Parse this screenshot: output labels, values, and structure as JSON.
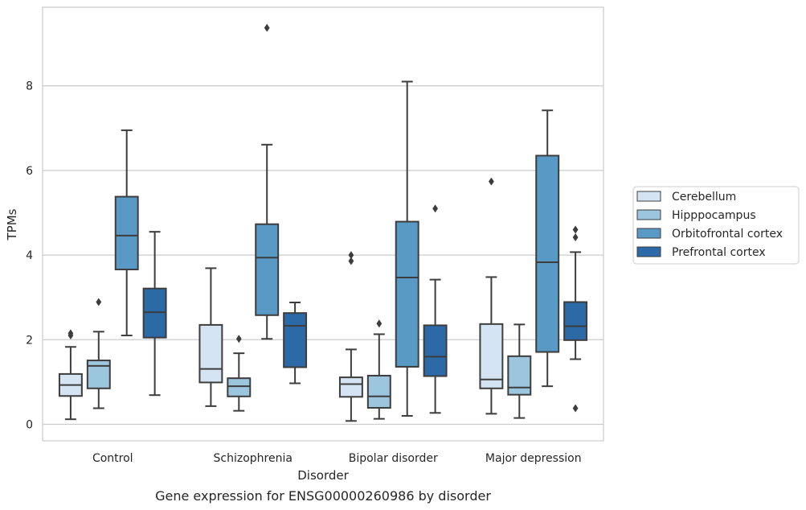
{
  "chart_data": {
    "type": "boxplot",
    "caption": "Gene expression for ENSG00000260986 by disorder",
    "xlabel": "Disorder",
    "ylabel": "TPMs",
    "ylim": [
      -0.4,
      9.9
    ],
    "yticks": [
      0,
      2,
      4,
      6,
      8
    ],
    "grid": "horizontal",
    "legend_position": "right, outside plot",
    "categories": [
      "Control",
      "Schizophrenia",
      "Bipolar disorder",
      "Major depression"
    ],
    "series": [
      {
        "name": "Cerebellum",
        "color": "#d4e4f2",
        "boxes": [
          {
            "whislo": 0.12,
            "q1": 0.67,
            "med": 0.93,
            "q3": 1.19,
            "whishi": 1.83,
            "fliers": [
              2.1,
              2.15
            ]
          },
          {
            "whislo": 0.43,
            "q1": 0.99,
            "med": 1.31,
            "q3": 2.35,
            "whishi": 3.69,
            "fliers": []
          },
          {
            "whislo": 0.08,
            "q1": 0.65,
            "med": 0.95,
            "q3": 1.11,
            "whishi": 1.77,
            "fliers": [
              3.86,
              4.0
            ]
          },
          {
            "whislo": 0.25,
            "q1": 0.85,
            "med": 1.06,
            "q3": 2.37,
            "whishi": 3.48,
            "fliers": [
              5.74
            ]
          }
        ]
      },
      {
        "name": "Hipppocampus",
        "color": "#9cc5de",
        "boxes": [
          {
            "whislo": 0.38,
            "q1": 0.85,
            "med": 1.38,
            "q3": 1.51,
            "whishi": 2.19,
            "fliers": [
              2.89
            ]
          },
          {
            "whislo": 0.32,
            "q1": 0.66,
            "med": 0.9,
            "q3": 1.09,
            "whishi": 1.68,
            "fliers": [
              2.02
            ]
          },
          {
            "whislo": 0.13,
            "q1": 0.39,
            "med": 0.66,
            "q3": 1.15,
            "whishi": 2.13,
            "fliers": [
              2.38
            ]
          },
          {
            "whislo": 0.15,
            "q1": 0.7,
            "med": 0.87,
            "q3": 1.61,
            "whishi": 2.36,
            "fliers": []
          }
        ]
      },
      {
        "name": "Orbitofrontal cortex",
        "color": "#5899c6",
        "boxes": [
          {
            "whislo": 2.1,
            "q1": 3.66,
            "med": 4.46,
            "q3": 5.38,
            "whishi": 6.95,
            "fliers": []
          },
          {
            "whislo": 2.02,
            "q1": 2.58,
            "med": 3.94,
            "q3": 4.73,
            "whishi": 6.61,
            "fliers": [
              9.37
            ]
          },
          {
            "whislo": 0.2,
            "q1": 1.36,
            "med": 3.47,
            "q3": 4.79,
            "whishi": 8.1,
            "fliers": []
          },
          {
            "whislo": 0.9,
            "q1": 1.71,
            "med": 3.83,
            "q3": 6.35,
            "whishi": 7.42,
            "fliers": []
          }
        ]
      },
      {
        "name": "Prefrontal cortex",
        "color": "#2b69a7",
        "boxes": [
          {
            "whislo": 0.69,
            "q1": 2.05,
            "med": 2.65,
            "q3": 3.21,
            "whishi": 4.55,
            "fliers": []
          },
          {
            "whislo": 0.97,
            "q1": 1.35,
            "med": 2.33,
            "q3": 2.63,
            "whishi": 2.88,
            "fliers": []
          },
          {
            "whislo": 0.27,
            "q1": 1.14,
            "med": 1.6,
            "q3": 2.34,
            "whishi": 3.42,
            "fliers": [
              5.1
            ]
          },
          {
            "whislo": 1.54,
            "q1": 1.99,
            "med": 2.32,
            "q3": 2.89,
            "whishi": 4.07,
            "fliers": [
              0.38,
              4.42,
              4.6
            ]
          }
        ]
      }
    ]
  }
}
